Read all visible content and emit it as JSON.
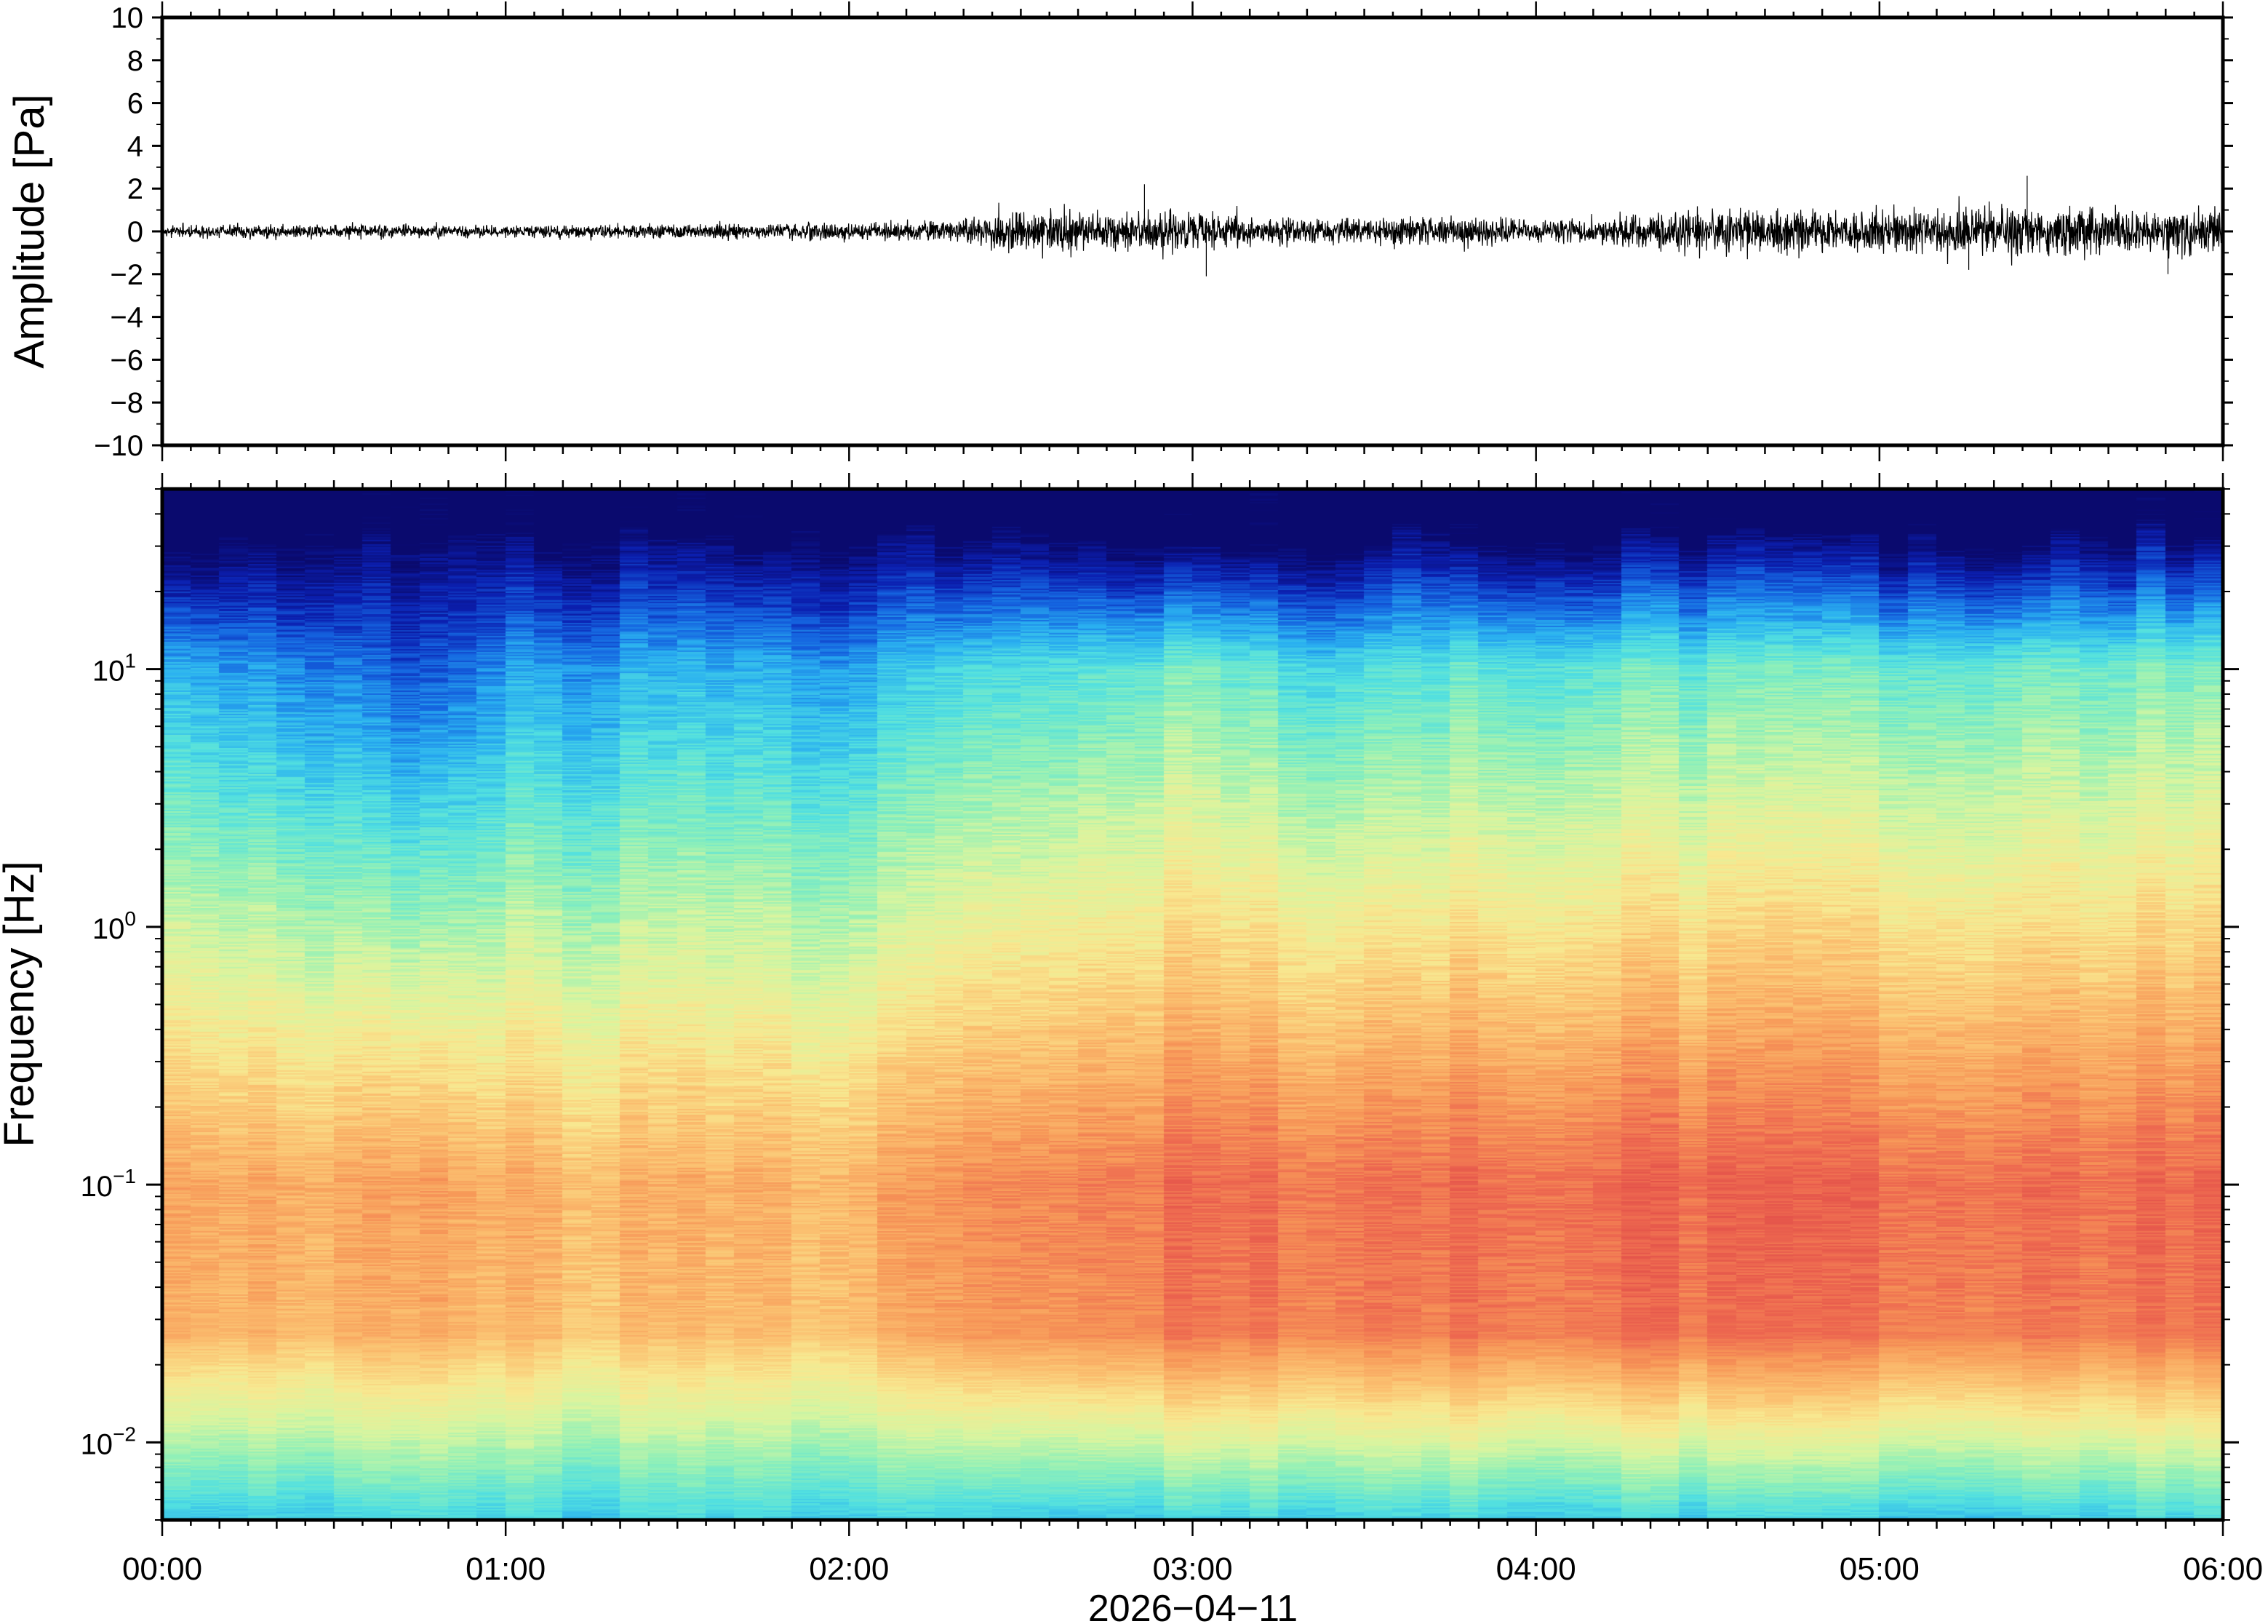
{
  "chart_data": [
    {
      "type": "line",
      "ylabel": "Amplitude [Pa]",
      "ylim": [
        -10,
        10
      ],
      "yticks": [
        10,
        8,
        6,
        4,
        2,
        0,
        -2,
        -4,
        -6,
        -8,
        -10
      ],
      "ytick_labels": [
        "10",
        "8",
        "6",
        "4",
        "2",
        "0",
        "−2",
        "−4",
        "−6",
        "−8",
        "−10"
      ],
      "xlim_hours": [
        0,
        6
      ],
      "envelope": {
        "x_hours": [
          0.0,
          0.5,
          1.0,
          1.5,
          2.0,
          2.35,
          2.4,
          2.6,
          2.8,
          3.0,
          3.2,
          3.4,
          3.6,
          3.8,
          4.0,
          4.2,
          4.4,
          4.6,
          4.8,
          5.0,
          5.2,
          5.4,
          5.6,
          5.8,
          6.0
        ],
        "half_range_pa": [
          0.25,
          0.3,
          0.25,
          0.3,
          0.35,
          0.45,
          0.9,
          0.85,
          0.75,
          0.9,
          0.6,
          0.55,
          0.6,
          0.6,
          0.45,
          0.55,
          0.8,
          0.9,
          0.9,
          0.85,
          1.0,
          1.05,
          1.0,
          0.95,
          1.0
        ]
      },
      "spikes": [
        {
          "x_hours": 2.86,
          "value": 2.2
        },
        {
          "x_hours": 3.04,
          "value": -2.1
        },
        {
          "x_hours": 5.26,
          "value": -1.8
        },
        {
          "x_hours": 5.43,
          "value": 2.6
        },
        {
          "x_hours": 5.84,
          "value": -2.0
        }
      ],
      "grid": false
    },
    {
      "type": "heatmap",
      "ylabel": "Frequency [Hz]",
      "yscale": "log",
      "ylim_hz": [
        0.005,
        50
      ],
      "yticks_hz": [
        0.01,
        0.1,
        1,
        10
      ],
      "ytick_bases": [
        "10",
        "10",
        "10",
        "10"
      ],
      "ytick_exponents": [
        "−2",
        "−1",
        "0",
        "1"
      ],
      "xlim_hours": [
        0,
        6
      ],
      "xticks_hours": [
        0,
        1,
        2,
        3,
        4,
        5,
        6
      ],
      "xtick_labels": [
        "00:00",
        "01:00",
        "02:00",
        "03:00",
        "04:00",
        "05:00",
        "06:00"
      ],
      "xlabel": "2026−04−11",
      "colormap": [
        "#0a0a6e",
        "#0b1fb0",
        "#1565e0",
        "#2ab0f0",
        "#52e0e0",
        "#90f0b8",
        "#d8f5a0",
        "#f8e890",
        "#fbc070",
        "#f79858",
        "#ee6a50",
        "#e04a48"
      ],
      "approx_log10_power_sample": {
        "x_hours": [
          0,
          0.5,
          0.75,
          1.0,
          1.5,
          2.0,
          2.4,
          3.0,
          3.4,
          3.8,
          4.3,
          5.0,
          6.0
        ],
        "note_free": true,
        "level_at_10hz": [
          0.3,
          0.22,
          0.12,
          0.24,
          0.27,
          0.26,
          0.36,
          0.42,
          0.34,
          0.38,
          0.4,
          0.42,
          0.42
        ],
        "level_at_0.1hz": [
          0.8,
          0.78,
          0.78,
          0.76,
          0.75,
          0.76,
          0.85,
          0.9,
          0.88,
          0.9,
          0.92,
          0.92,
          0.9
        ]
      },
      "grid": false
    }
  ]
}
